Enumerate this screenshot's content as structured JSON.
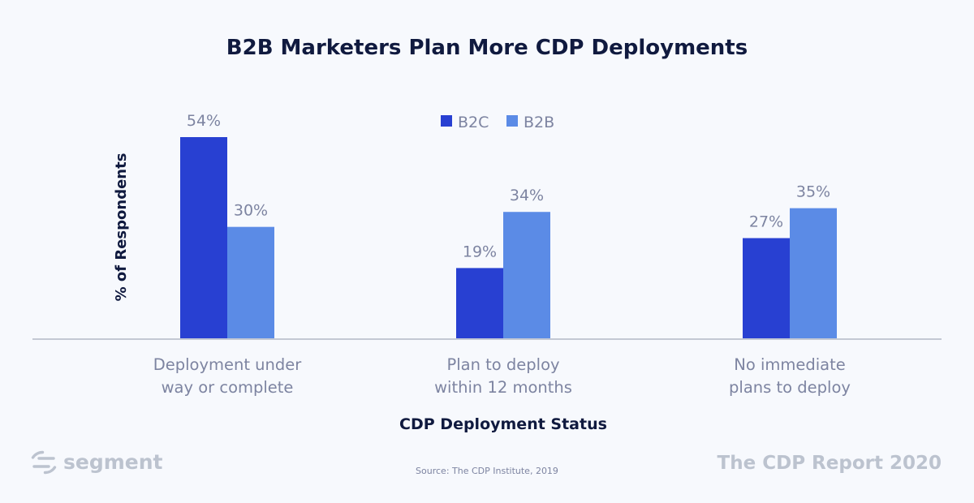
{
  "chart_data": {
    "type": "bar",
    "title": "B2B Marketers Plan More CDP Deployments",
    "xlabel": "CDP Deployment Status",
    "ylabel": "% of Respondents",
    "ylim": [
      0,
      60
    ],
    "grid": false,
    "legend_position": "top-center",
    "categories": [
      [
        "Deployment under",
        "way or complete"
      ],
      [
        "Plan to deploy",
        "within 12 months"
      ],
      [
        "No immediate",
        "plans to deploy"
      ]
    ],
    "series": [
      {
        "name": "B2C",
        "color": "#2840d2",
        "values": [
          54,
          19,
          27
        ],
        "labels": [
          "54%",
          "19%",
          "27%"
        ]
      },
      {
        "name": "B2B",
        "color": "#5b8be6",
        "values": [
          30,
          34,
          35
        ],
        "labels": [
          "30%",
          "34%",
          "35%"
        ]
      }
    ]
  },
  "footer": {
    "brand": "segment",
    "source": "Source: The CDP Institute, 2019",
    "report": "The CDP Report 2020"
  },
  "colors": {
    "background": "#f7f9fd",
    "title": "#101a3f",
    "muted": "#7d84a1",
    "footer_gray": "#bcc3cf",
    "axis": "#c3c8d4"
  },
  "icons": {
    "brand_logo": "segment-logo-icon"
  }
}
